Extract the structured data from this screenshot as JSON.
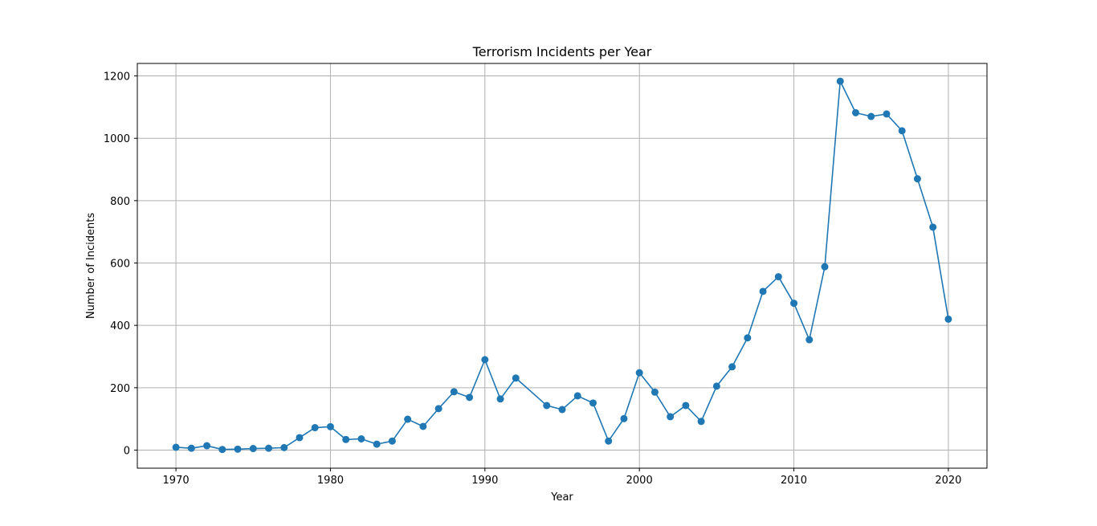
{
  "chart_data": {
    "type": "line",
    "title": "Terrorism Incidents per Year",
    "xlabel": "Year",
    "ylabel": "Number of Incidents",
    "xlim": [
      1967.5,
      2022.5
    ],
    "ylim": [
      -58,
      1240
    ],
    "grid": true,
    "x_ticks": [
      1970,
      1980,
      1990,
      2000,
      2010,
      2020
    ],
    "y_ticks": [
      0,
      200,
      400,
      600,
      800,
      1000,
      1200
    ],
    "colors": {
      "line": "#1f77b4",
      "grid": "#b0b0b0"
    },
    "series": [
      {
        "x": [
          1970,
          1971,
          1972,
          1973,
          1974,
          1975,
          1976,
          1977,
          1978,
          1979,
          1980,
          1981,
          1982,
          1983,
          1984,
          1985,
          1986,
          1987,
          1988,
          1989,
          1990,
          1991,
          1992,
          1994,
          1995,
          1996,
          1997,
          1998,
          1999,
          2000,
          2001,
          2002,
          2003,
          2004,
          2005,
          2006,
          2007,
          2008,
          2009,
          2010,
          2011,
          2012,
          2013,
          2014,
          2015,
          2016,
          2017,
          2018,
          2019,
          2020
        ],
        "y": [
          9,
          6,
          14,
          2,
          3,
          5,
          6,
          8,
          40,
          72,
          75,
          34,
          36,
          19,
          29,
          99,
          76,
          133,
          187,
          169,
          290,
          164,
          231,
          143,
          130,
          174,
          151,
          29,
          101,
          248,
          186,
          107,
          143,
          92,
          205,
          267,
          360,
          509,
          556,
          471,
          354,
          588,
          1183,
          1082,
          1070,
          1078,
          1024,
          870,
          715,
          420
        ]
      }
    ]
  }
}
